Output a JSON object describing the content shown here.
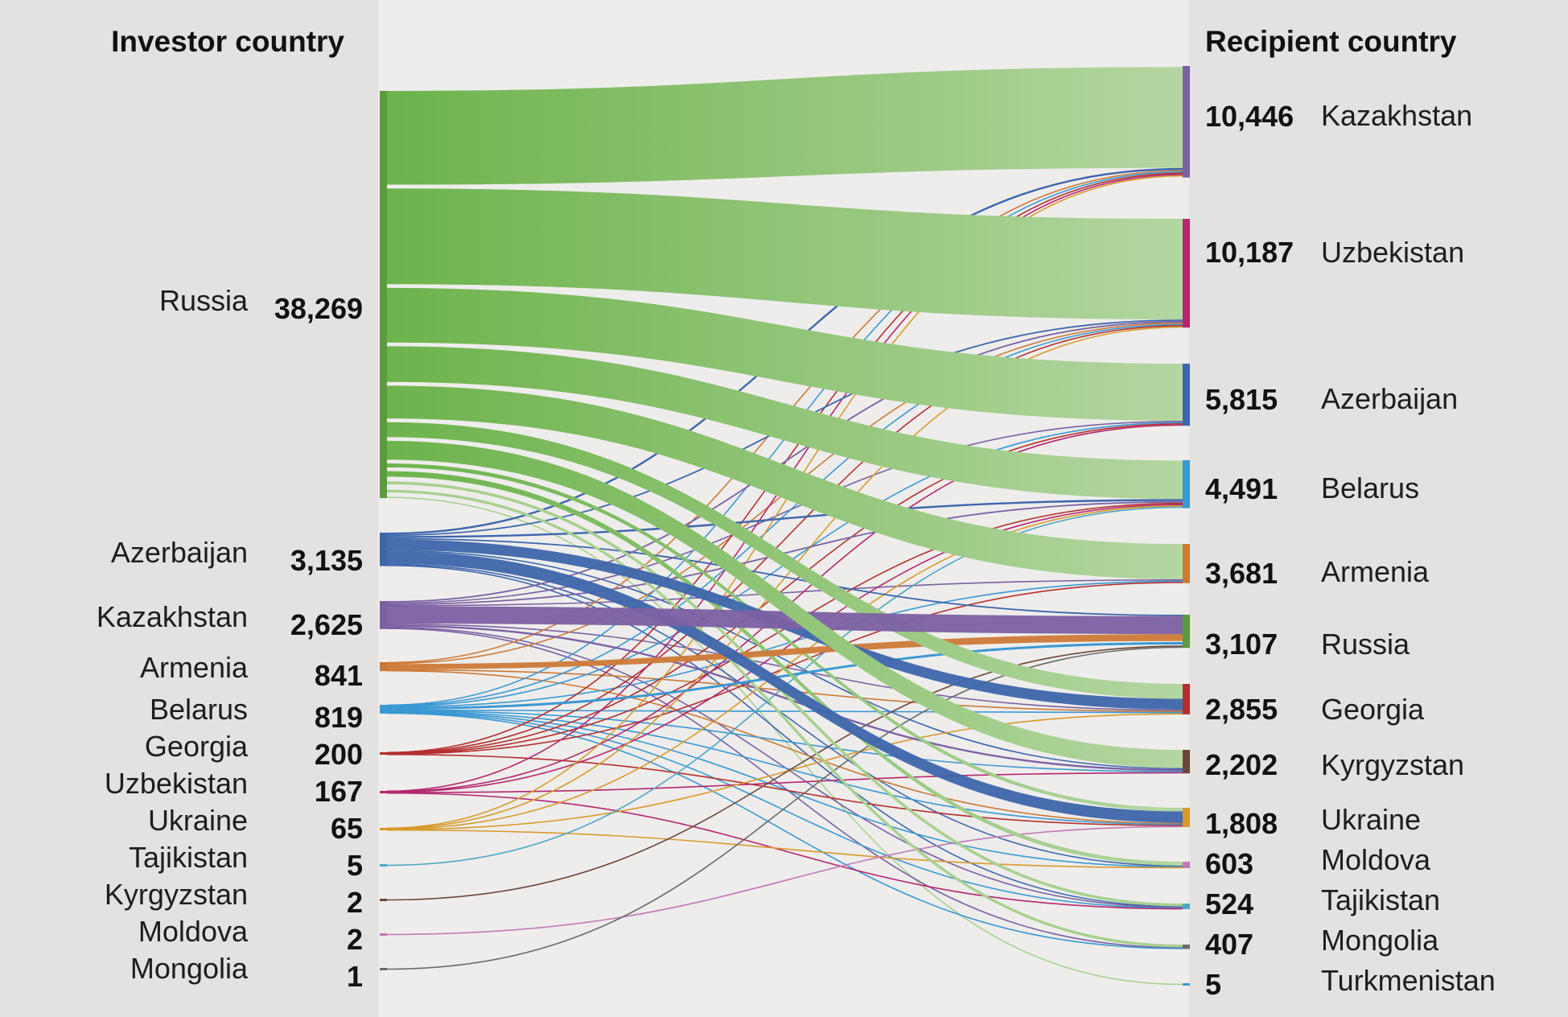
{
  "chart_data": {
    "type": "sankey",
    "title": "",
    "left_header": "Investor country",
    "right_header": "Recipient country",
    "sources": [
      {
        "name": "Russia",
        "label": "38,269",
        "value": 38269
      },
      {
        "name": "Azerbaijan",
        "label": "3,135",
        "value": 3135
      },
      {
        "name": "Kazakhstan",
        "label": "2,625",
        "value": 2625
      },
      {
        "name": "Armenia",
        "label": "841",
        "value": 841
      },
      {
        "name": "Belarus",
        "label": "819",
        "value": 819
      },
      {
        "name": "Georgia",
        "label": "200",
        "value": 200
      },
      {
        "name": "Uzbekistan",
        "label": "167",
        "value": 167
      },
      {
        "name": "Ukraine",
        "label": "65",
        "value": 65
      },
      {
        "name": "Tajikistan",
        "label": "5",
        "value": 5
      },
      {
        "name": "Kyrgyzstan",
        "label": "2",
        "value": 2
      },
      {
        "name": "Moldova",
        "label": "2",
        "value": 2
      },
      {
        "name": "Mongolia",
        "label": "1",
        "value": 1
      }
    ],
    "targets": [
      {
        "name": "Kazakhstan",
        "label": "10,446",
        "value": 10446
      },
      {
        "name": "Uzbekistan",
        "label": "10,187",
        "value": 10187
      },
      {
        "name": "Azerbaijan",
        "label": "5,815",
        "value": 5815
      },
      {
        "name": "Belarus",
        "label": "4,491",
        "value": 4491
      },
      {
        "name": "Armenia",
        "label": "3,681",
        "value": 3681
      },
      {
        "name": "Russia",
        "label": "3,107",
        "value": 3107
      },
      {
        "name": "Georgia",
        "label": "2,855",
        "value": 2855
      },
      {
        "name": "Kyrgyzstan",
        "label": "2,202",
        "value": 2202
      },
      {
        "name": "Ukraine",
        "label": "1,808",
        "value": 1808
      },
      {
        "name": "Moldova",
        "label": "603",
        "value": 603
      },
      {
        "name": "Tajikistan",
        "label": "524",
        "value": 524
      },
      {
        "name": "Mongolia",
        "label": "407",
        "value": 407
      },
      {
        "name": "Turkmenistan",
        "label": "5",
        "value": 5
      }
    ],
    "flows": [
      {
        "from": "Russia",
        "to": "Kazakhstan",
        "value": 9450
      },
      {
        "from": "Russia",
        "to": "Uzbekistan",
        "value": 9650
      },
      {
        "from": "Russia",
        "to": "Azerbaijan",
        "value": 5500
      },
      {
        "from": "Russia",
        "to": "Belarus",
        "value": 3600
      },
      {
        "from": "Russia",
        "to": "Armenia",
        "value": 3300
      },
      {
        "from": "Russia",
        "to": "Georgia",
        "value": 1500
      },
      {
        "from": "Russia",
        "to": "Kyrgyzstan",
        "value": 1900
      },
      {
        "from": "Russia",
        "to": "Ukraine",
        "value": 400
      },
      {
        "from": "Russia",
        "to": "Moldova",
        "value": 560
      },
      {
        "from": "Russia",
        "to": "Tajikistan",
        "value": 500
      },
      {
        "from": "Russia",
        "to": "Mongolia",
        "value": 400
      },
      {
        "from": "Russia",
        "to": "Turkmenistan",
        "value": 5
      },
      {
        "from": "Azerbaijan",
        "to": "Kazakhstan",
        "value": 200
      },
      {
        "from": "Azerbaijan",
        "to": "Uzbekistan",
        "value": 150
      },
      {
        "from": "Azerbaijan",
        "to": "Belarus",
        "value": 200
      },
      {
        "from": "Azerbaijan",
        "to": "Russia",
        "value": 150
      },
      {
        "from": "Azerbaijan",
        "to": "Georgia",
        "value": 1100
      },
      {
        "from": "Azerbaijan",
        "to": "Ukraine",
        "value": 1300
      },
      {
        "from": "Azerbaijan",
        "to": "Kyrgyzstan",
        "value": 20
      },
      {
        "from": "Azerbaijan",
        "to": "Tajikistan",
        "value": 10
      },
      {
        "from": "Azerbaijan",
        "to": "Moldova",
        "value": 5
      },
      {
        "from": "Kazakhstan",
        "to": "Uzbekistan",
        "value": 150
      },
      {
        "from": "Kazakhstan",
        "to": "Azerbaijan",
        "value": 100
      },
      {
        "from": "Kazakhstan",
        "to": "Belarus",
        "value": 150
      },
      {
        "from": "Kazakhstan",
        "to": "Russia",
        "value": 1800
      },
      {
        "from": "Kazakhstan",
        "to": "Georgia",
        "value": 100
      },
      {
        "from": "Kazakhstan",
        "to": "Kyrgyzstan",
        "value": 200
      },
      {
        "from": "Kazakhstan",
        "to": "Tajikistan",
        "value": 10
      },
      {
        "from": "Kazakhstan",
        "to": "Armenia",
        "value": 5
      },
      {
        "from": "Kazakhstan",
        "to": "Mongolia",
        "value": 5
      },
      {
        "from": "Armenia",
        "to": "Kazakhstan",
        "value": 100
      },
      {
        "from": "Armenia",
        "to": "Russia",
        "value": 700
      },
      {
        "from": "Armenia",
        "to": "Georgia",
        "value": 20
      },
      {
        "from": "Armenia",
        "to": "Ukraine",
        "value": 10
      },
      {
        "from": "Armenia",
        "to": "Uzbekistan",
        "value": 5
      },
      {
        "from": "Belarus",
        "to": "Kazakhstan",
        "value": 100
      },
      {
        "from": "Belarus",
        "to": "Uzbekistan",
        "value": 50
      },
      {
        "from": "Belarus",
        "to": "Azerbaijan",
        "value": 50
      },
      {
        "from": "Belarus",
        "to": "Russia",
        "value": 450
      },
      {
        "from": "Belarus",
        "to": "Georgia",
        "value": 50
      },
      {
        "from": "Belarus",
        "to": "Kyrgyzstan",
        "value": 30
      },
      {
        "from": "Belarus",
        "to": "Ukraine",
        "value": 50
      },
      {
        "from": "Belarus",
        "to": "Armenia",
        "value": 20
      },
      {
        "from": "Belarus",
        "to": "Moldova",
        "value": 10
      },
      {
        "from": "Belarus",
        "to": "Tajikistan",
        "value": 5
      },
      {
        "from": "Belarus",
        "to": "Mongolia",
        "value": 4
      },
      {
        "from": "Georgia",
        "to": "Kazakhstan",
        "value": 20
      },
      {
        "from": "Georgia",
        "to": "Uzbekistan",
        "value": 20
      },
      {
        "from": "Georgia",
        "to": "Azerbaijan",
        "value": 50
      },
      {
        "from": "Georgia",
        "to": "Belarus",
        "value": 30
      },
      {
        "from": "Georgia",
        "to": "Armenia",
        "value": 50
      },
      {
        "from": "Georgia",
        "to": "Ukraine",
        "value": 30
      },
      {
        "from": "Uzbekistan",
        "to": "Kazakhstan",
        "value": 40
      },
      {
        "from": "Uzbekistan",
        "to": "Azerbaijan",
        "value": 30
      },
      {
        "from": "Uzbekistan",
        "to": "Belarus",
        "value": 20
      },
      {
        "from": "Uzbekistan",
        "to": "Kyrgyzstan",
        "value": 50
      },
      {
        "from": "Uzbekistan",
        "to": "Tajikistan",
        "value": 27
      },
      {
        "from": "Ukraine",
        "to": "Kazakhstan",
        "value": 15
      },
      {
        "from": "Ukraine",
        "to": "Uzbekistan",
        "value": 10
      },
      {
        "from": "Ukraine",
        "to": "Belarus",
        "value": 15
      },
      {
        "from": "Ukraine",
        "to": "Moldova",
        "value": 20
      },
      {
        "from": "Ukraine",
        "to": "Georgia",
        "value": 5
      },
      {
        "from": "Tajikistan",
        "to": "Belarus",
        "value": 5
      },
      {
        "from": "Kyrgyzstan",
        "to": "Russia",
        "value": 2
      },
      {
        "from": "Moldova",
        "to": "Ukraine",
        "value": 2
      },
      {
        "from": "Mongolia",
        "to": "Russia",
        "value": 1
      }
    ]
  }
}
